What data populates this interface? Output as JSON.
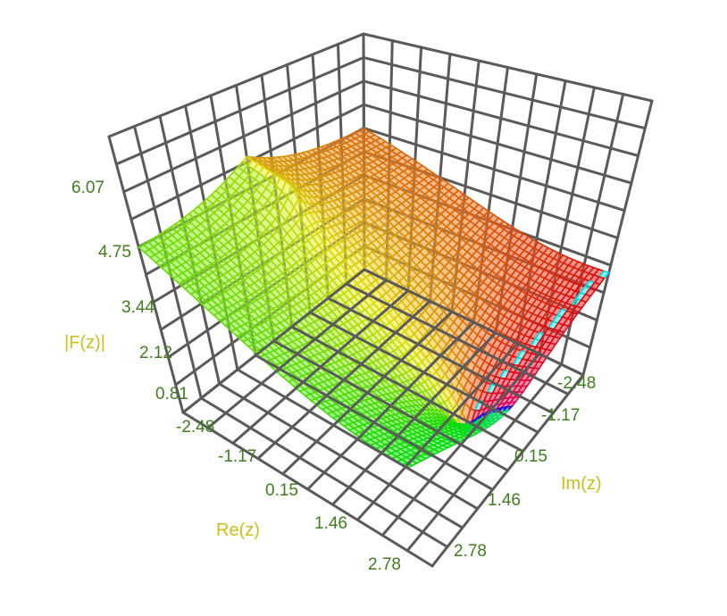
{
  "chart_data": {
    "type": "surface3d",
    "title": "",
    "xlabel": "Re(z)",
    "ylabel": "Im(z)",
    "zlabel": "|F(z)|",
    "x_ticks": [
      "-2.48",
      "-1.17",
      "0.15",
      "1.46",
      "2.78"
    ],
    "y_ticks": [
      "-2.48",
      "-1.17",
      "0.15",
      "1.46",
      "2.78"
    ],
    "z_ticks": [
      "0.81",
      "2.12",
      "3.44",
      "4.75",
      "6.07"
    ],
    "xlim": [
      -3.14,
      3.14
    ],
    "ylim": [
      -3.14,
      3.14
    ],
    "zlim": [
      0.81,
      7.0
    ],
    "grid": true,
    "color_mapping": "hue by argument of F(z)",
    "surface_shape": "saddle-like sheet with a sharp ridge (branch cut) running from the minimum near Re(z)=2, Im(z)=0 toward Re(z)=-3.14, Im(z)=0; heights rise toward Re(z)=-3.14",
    "sample_points": [
      {
        "x": -3.14,
        "y": -3.14,
        "z": 6.8
      },
      {
        "x": -3.14,
        "y": 0.0,
        "z": 7.0
      },
      {
        "x": -3.14,
        "y": 3.14,
        "z": 5.8
      },
      {
        "x": 0.0,
        "y": 0.0,
        "z": 3.0
      },
      {
        "x": 2.0,
        "y": 0.0,
        "z": 0.9
      },
      {
        "x": 3.14,
        "y": -3.14,
        "z": 4.2
      },
      {
        "x": 3.14,
        "y": 3.14,
        "z": 0.9
      }
    ]
  }
}
